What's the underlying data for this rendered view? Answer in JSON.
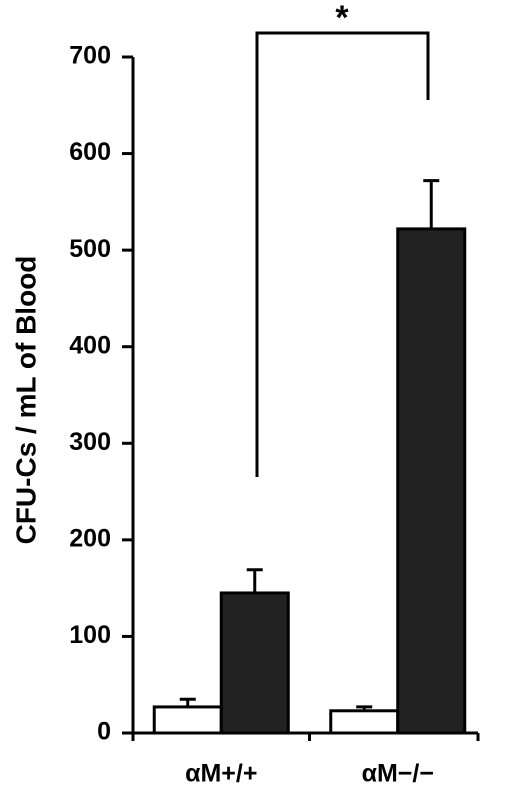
{
  "chart_data": {
    "type": "bar",
    "y_label": "CFU-Cs / mL of Blood",
    "categories": [
      "αM+/+",
      "αM−/−"
    ],
    "series": [
      {
        "color": "#ffffff",
        "values": [
          27,
          23
        ],
        "errors": [
          8,
          4
        ]
      },
      {
        "color": "#222222",
        "values": [
          145,
          522
        ],
        "errors": [
          24,
          50
        ]
      }
    ],
    "ylim": [
      0,
      700
    ],
    "yticks": [
      0,
      100,
      200,
      300,
      400,
      500,
      600,
      700
    ],
    "annotation": "*"
  }
}
